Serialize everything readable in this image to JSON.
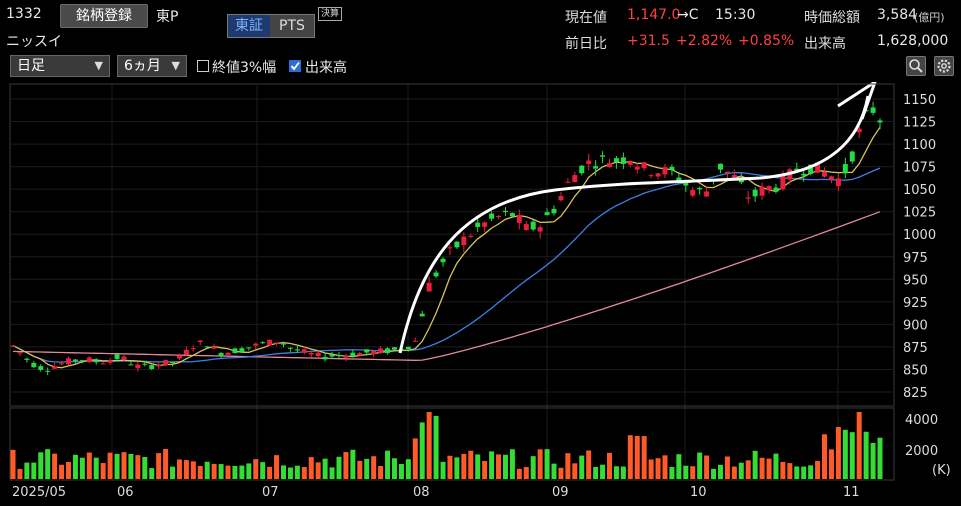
{
  "header": {
    "code": "1332",
    "register_label": "銘柄登録",
    "market": "東P",
    "company": "ニッスイ",
    "exchange_tabs": [
      "東証",
      "PTS"
    ],
    "settle_label": "決算"
  },
  "quote": {
    "price_label": "現在値",
    "price": "1,147.0",
    "price_suffix": "→C",
    "time": "15:30",
    "mcap_label": "時価総額",
    "mcap": "3,584",
    "mcap_unit": "(億円)",
    "change_label": "前日比",
    "change": "+31.5",
    "change_pct": "+2.82%",
    "extra_pct": "+0.85%",
    "volume_label": "出来高",
    "volume": "1,628,000"
  },
  "toolbar": {
    "period": "日足",
    "range": "6ヵ月",
    "band_label": "終値3%幅",
    "band_checked": false,
    "volume_label": "出来高",
    "volume_checked": true
  },
  "chart_data": {
    "type": "candlestick",
    "y_ticks": [
      "1150",
      "1125",
      "1100",
      "1075",
      "1050",
      "1025",
      "1000",
      "975",
      "950",
      "925",
      "900",
      "875",
      "850",
      "825"
    ],
    "ylim": [
      815,
      1160
    ],
    "volume_ticks": [
      "4000",
      "2000"
    ],
    "volume_unit": "(K)",
    "x_ticks": [
      "2025/05",
      "06",
      "07",
      "08",
      "09",
      "10",
      "11"
    ],
    "colors": {
      "up": "#e8203a",
      "down": "#22dd44",
      "ma_short": "#d6c45a",
      "ma_mid": "#3f7fe0",
      "ma_long": "#e08a9a",
      "vol_up": "#ff5a28",
      "vol_down": "#33dd33"
    }
  }
}
